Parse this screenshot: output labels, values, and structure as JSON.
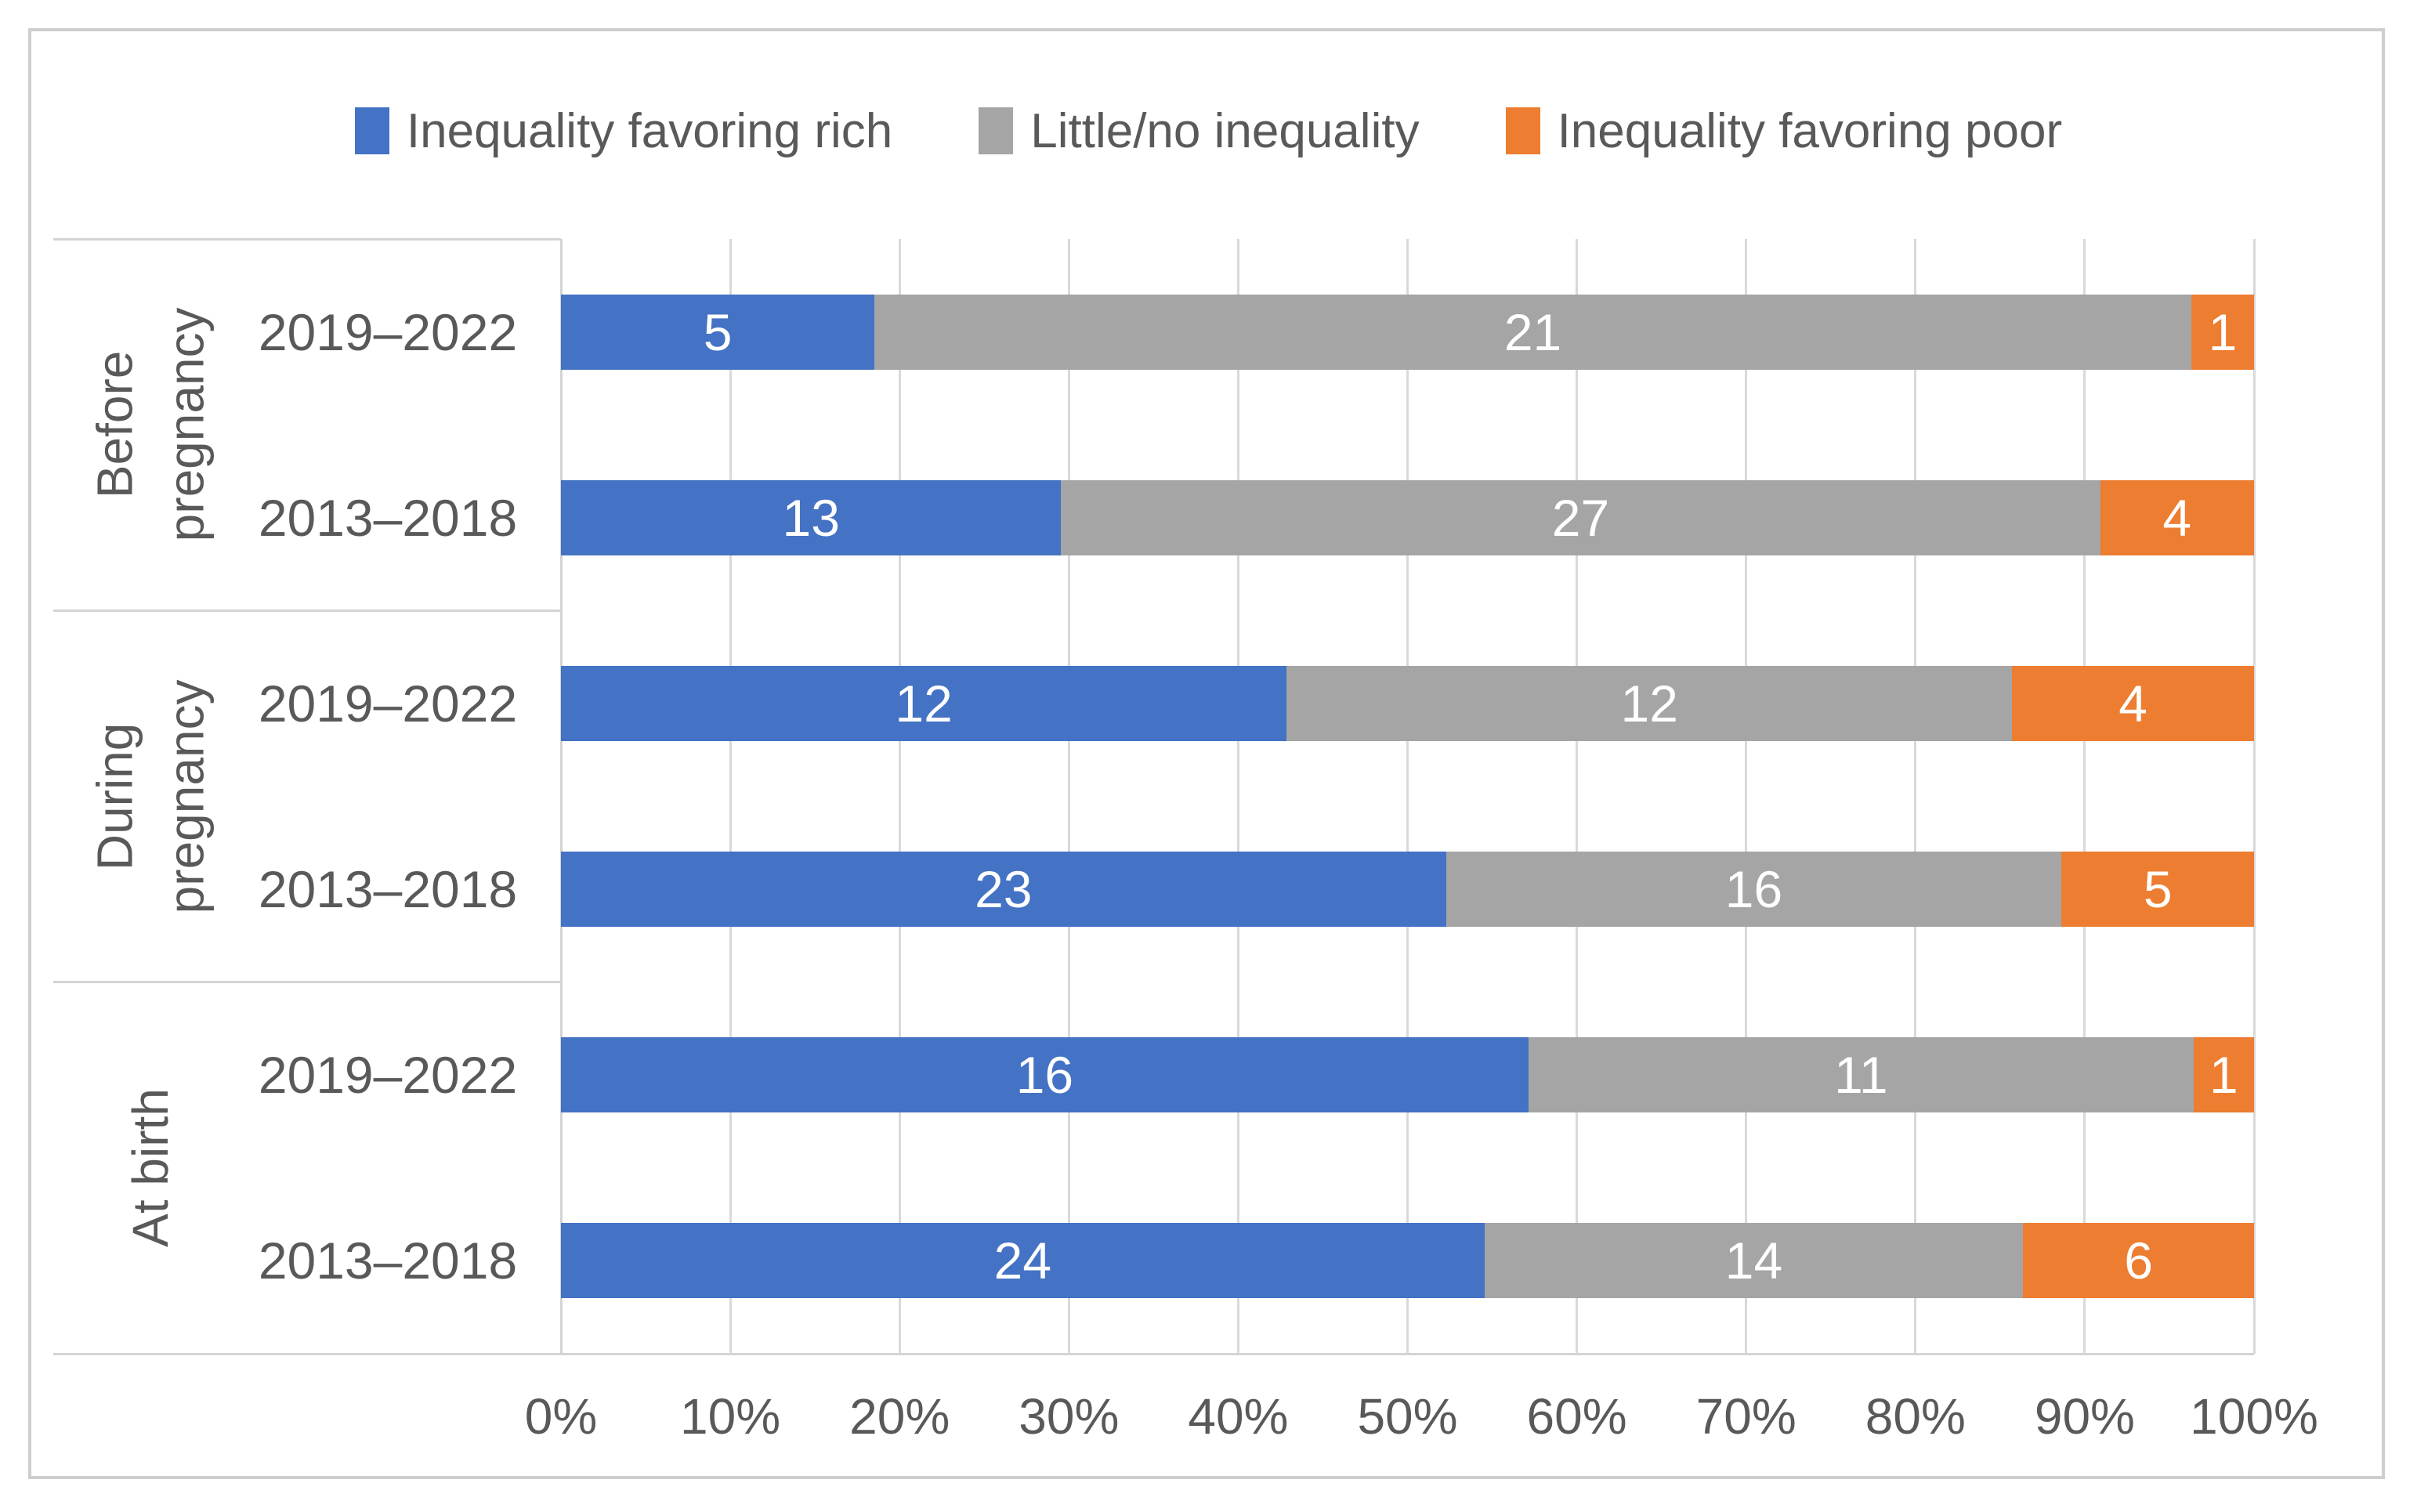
{
  "chart_data": {
    "type": "bar",
    "variant": "100% stacked horizontal",
    "title": "",
    "legend_position": "top",
    "series": [
      {
        "name": "Inequality favoring rich",
        "color": "#4472C4",
        "values": [
          5,
          13,
          12,
          23,
          16,
          24
        ]
      },
      {
        "name": "Little/no inequality",
        "color": "#A5A5A5",
        "values": [
          21,
          27,
          12,
          16,
          11,
          14
        ]
      },
      {
        "name": "Inequality favoring poor",
        "color": "#ED7D31",
        "values": [
          1,
          4,
          4,
          5,
          1,
          6
        ]
      }
    ],
    "categories": [
      {
        "group": "Before pregnancy",
        "period": "2019–2022"
      },
      {
        "group": "Before pregnancy",
        "period": "2013–2018"
      },
      {
        "group": "During pregnancy",
        "period": "2019–2022"
      },
      {
        "group": "During pregnancy",
        "period": "2013–2018"
      },
      {
        "group": "At birth",
        "period": "2019–2022"
      },
      {
        "group": "At birth",
        "period": "2013–2018"
      }
    ],
    "group_labels": [
      {
        "lines": [
          "Before",
          "pregnancy"
        ]
      },
      {
        "lines": [
          "During",
          "pregnancy"
        ]
      },
      {
        "lines": [
          "At birth"
        ]
      }
    ],
    "x_axis": {
      "tick_labels": [
        "0%",
        "10%",
        "20%",
        "30%",
        "40%",
        "50%",
        "60%",
        "70%",
        "80%",
        "90%",
        "100%"
      ],
      "range": [
        0,
        100
      ],
      "gridlines": true
    },
    "bar_label_color": "#ffffff"
  }
}
